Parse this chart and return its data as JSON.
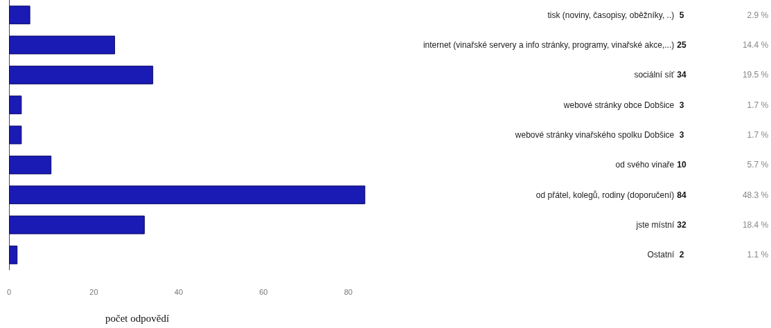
{
  "chart_data": {
    "type": "bar",
    "orientation": "horizontal",
    "xlabel": "počet odpovědí",
    "categories": [
      "tisk (noviny, časopisy, oběžníky, ..)",
      "internet (vinařské servery a info stránky, programy, vinařské akce,...)",
      "sociální síť",
      "webové stránky obce Dobšice",
      "webové stránky vinařského spolku Dobšice",
      "od svého vinaře",
      "od přátel, kolegů, rodiny (doporučení)",
      "jste místní",
      "Ostatní"
    ],
    "values": [
      5,
      25,
      34,
      3,
      3,
      10,
      84,
      32,
      2
    ],
    "annotations": [
      "2.9 %",
      "14.4 %",
      "19.5 %",
      "1.7 %",
      "1.7 %",
      "5.7 %",
      "48.3 %",
      "18.4 %",
      "1.1 %"
    ],
    "data_labels": true,
    "color": "#1a1ab4",
    "xlim": [
      0,
      84
    ],
    "xticks": [
      0,
      20,
      40,
      60,
      80
    ],
    "grid": false
  }
}
